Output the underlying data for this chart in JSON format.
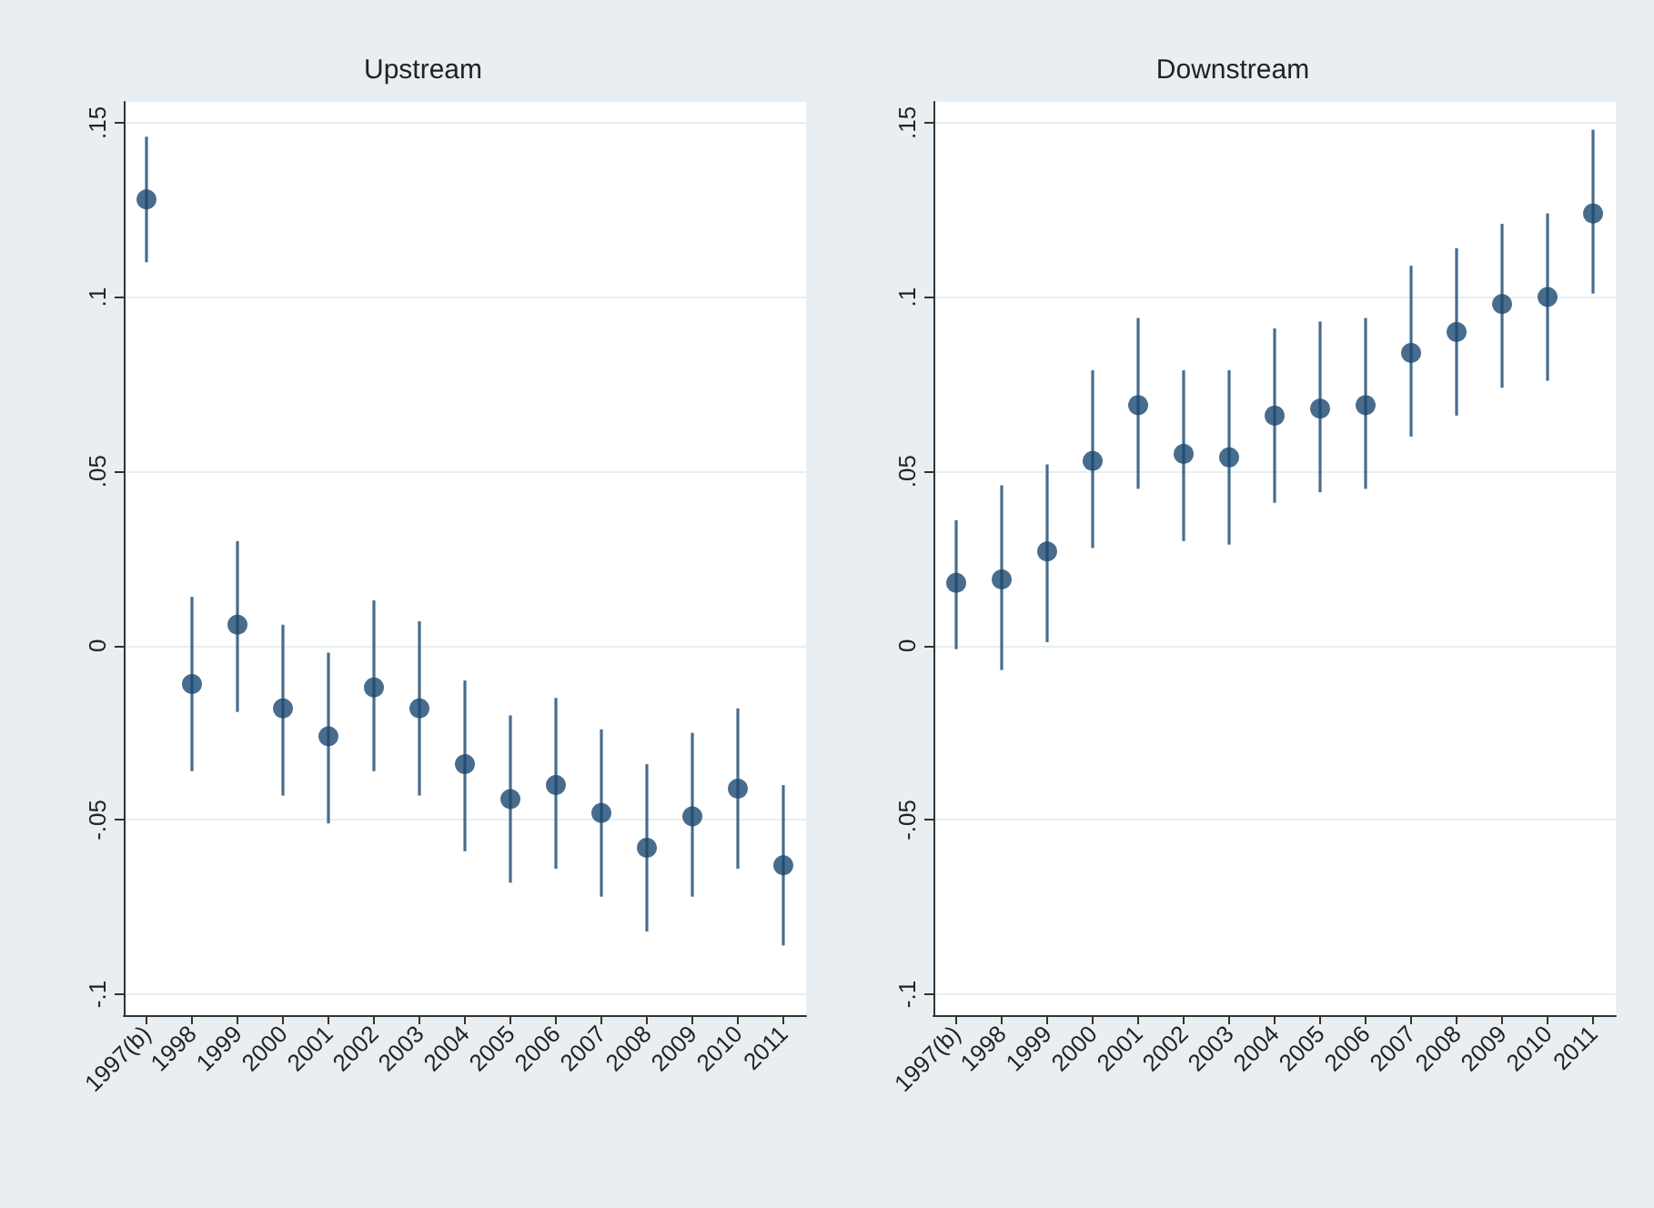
{
  "chart_data": [
    {
      "type": "scatter",
      "title": "Upstream",
      "categories": [
        "1997(b)",
        "1998",
        "1999",
        "2000",
        "2001",
        "2002",
        "2003",
        "2004",
        "2005",
        "2006",
        "2007",
        "2008",
        "2009",
        "2010",
        "2011"
      ],
      "series": [
        {
          "color": "#1a476f",
          "values": [
            0.128,
            -0.011,
            0.006,
            -0.018,
            -0.026,
            -0.012,
            -0.018,
            -0.034,
            -0.044,
            -0.04,
            -0.048,
            -0.058,
            -0.049,
            -0.041,
            -0.063
          ],
          "errors": [
            [
              0.11,
              0.146
            ],
            [
              -0.036,
              0.014
            ],
            [
              -0.019,
              0.03
            ],
            [
              -0.043,
              0.006
            ],
            [
              -0.051,
              -0.002
            ],
            [
              -0.036,
              0.013
            ],
            [
              -0.043,
              0.007
            ],
            [
              -0.059,
              -0.01
            ],
            [
              -0.068,
              -0.02
            ],
            [
              -0.064,
              -0.015
            ],
            [
              -0.072,
              -0.024
            ],
            [
              -0.082,
              -0.034
            ],
            [
              -0.072,
              -0.025
            ],
            [
              -0.064,
              -0.018
            ],
            [
              -0.086,
              -0.04
            ]
          ]
        }
      ],
      "ylim": [
        -0.106,
        0.156
      ],
      "yticks": [
        {
          "value": -0.1,
          "label": "-.1"
        },
        {
          "value": -0.05,
          "label": "-.05"
        },
        0,
        {
          "value": 0.05,
          "label": ".05"
        },
        {
          "value": 0.1,
          "label": ".1"
        },
        {
          "value": 0.15,
          "label": ".15"
        }
      ],
      "grid": "y",
      "marker": "circle"
    },
    {
      "type": "scatter",
      "title": "Downstream",
      "categories": [
        "1997(b)",
        "1998",
        "1999",
        "2000",
        "2001",
        "2002",
        "2003",
        "2004",
        "2005",
        "2006",
        "2007",
        "2008",
        "2009",
        "2010",
        "2011"
      ],
      "series": [
        {
          "color": "#1a476f",
          "values": [
            0.018,
            0.019,
            0.027,
            0.053,
            0.069,
            0.055,
            0.054,
            0.066,
            0.068,
            0.069,
            0.084,
            0.09,
            0.098,
            0.1,
            0.124
          ],
          "errors": [
            [
              -0.001,
              0.036
            ],
            [
              -0.007,
              0.046
            ],
            [
              0.001,
              0.052
            ],
            [
              0.028,
              0.079
            ],
            [
              0.045,
              0.094
            ],
            [
              0.03,
              0.079
            ],
            [
              0.029,
              0.079
            ],
            [
              0.041,
              0.091
            ],
            [
              0.044,
              0.093
            ],
            [
              0.045,
              0.094
            ],
            [
              0.06,
              0.109
            ],
            [
              0.066,
              0.114
            ],
            [
              0.074,
              0.121
            ],
            [
              0.076,
              0.124
            ],
            [
              0.101,
              0.148
            ]
          ]
        }
      ],
      "ylim": [
        -0.106,
        0.156
      ],
      "yticks": [
        {
          "value": -0.1,
          "label": "-.1"
        },
        {
          "value": -0.05,
          "label": "-.05"
        },
        0,
        {
          "value": 0.05,
          "label": ".05"
        },
        {
          "value": 0.1,
          "label": ".1"
        },
        {
          "value": 0.15,
          "label": ".15"
        }
      ],
      "grid": "y",
      "marker": "circle"
    }
  ]
}
